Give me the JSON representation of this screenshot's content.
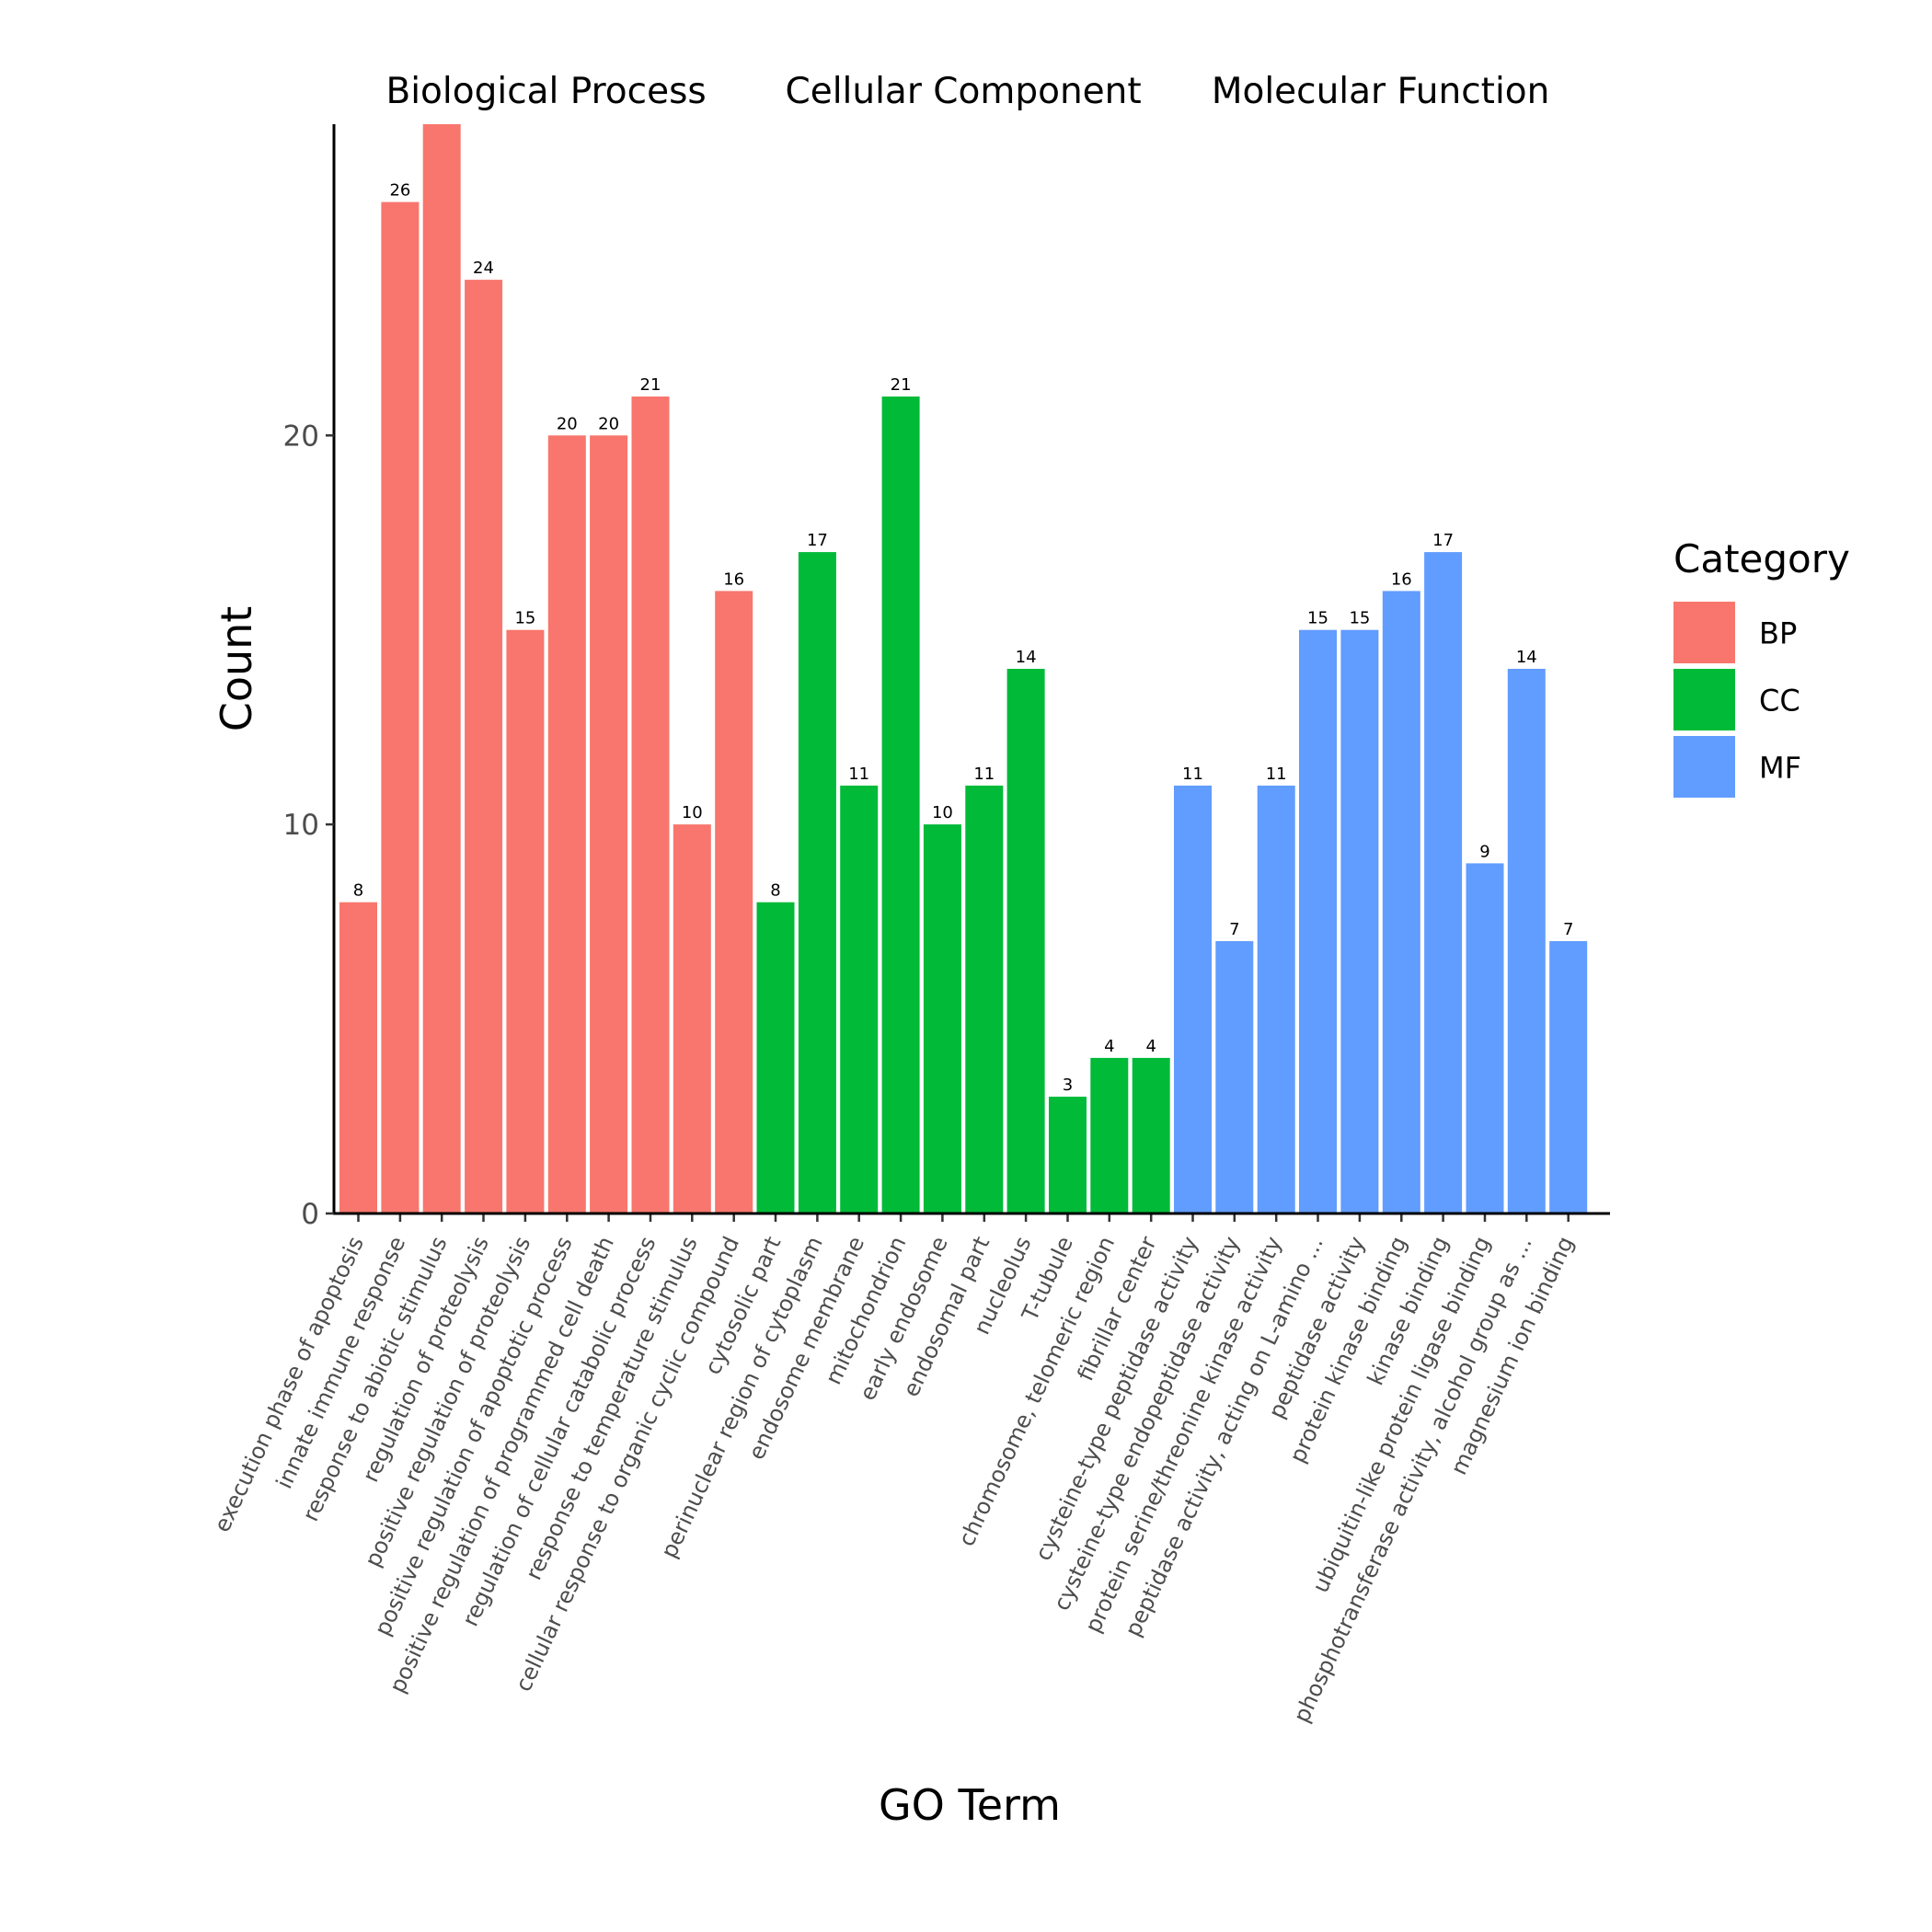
{
  "chart_data": {
    "type": "bar",
    "xlabel": "GO Term",
    "ylabel": "Count",
    "ylim": [
      0,
      28
    ],
    "yticks": [
      0,
      10,
      20
    ],
    "grid": false,
    "legend": {
      "title": "Category",
      "placement": "right",
      "entries": [
        {
          "key": "BP",
          "label": "BP",
          "color": "#F8766D"
        },
        {
          "key": "CC",
          "label": "CC",
          "color": "#00BA38"
        },
        {
          "key": "MF",
          "label": "MF",
          "color": "#619CFF"
        }
      ]
    },
    "facets": [
      {
        "title": "Biological Process",
        "category": "BP",
        "bars": [
          {
            "term": "execution phase of apoptosis",
            "value": 8,
            "label": "8"
          },
          {
            "term": "innate immune response",
            "value": 26,
            "label": "26"
          },
          {
            "term": "response to abiotic stimulus",
            "value": 28,
            "label": ""
          },
          {
            "term": "regulation of proteolysis",
            "value": 24,
            "label": "24"
          },
          {
            "term": "positive regulation of proteolysis",
            "value": 15,
            "label": "15"
          },
          {
            "term": "positive regulation of apoptotic process",
            "value": 20,
            "label": "20"
          },
          {
            "term": "positive regulation of programmed cell death",
            "value": 20,
            "label": "20"
          },
          {
            "term": "regulation of cellular catabolic process",
            "value": 21,
            "label": "21"
          },
          {
            "term": "response to temperature stimulus",
            "value": 10,
            "label": "10"
          },
          {
            "term": "cellular response to organic cyclic compound",
            "value": 16,
            "label": "16"
          }
        ]
      },
      {
        "title": "Cellular Component",
        "category": "CC",
        "bars": [
          {
            "term": "cytosolic part",
            "value": 8,
            "label": "8"
          },
          {
            "term": "perinuclear region of cytoplasm",
            "value": 17,
            "label": "17"
          },
          {
            "term": "endosome membrane",
            "value": 11,
            "label": "11"
          },
          {
            "term": "mitochondrion",
            "value": 21,
            "label": "21"
          },
          {
            "term": "early endosome",
            "value": 10,
            "label": "10"
          },
          {
            "term": "endosomal part",
            "value": 11,
            "label": "11"
          },
          {
            "term": "nucleolus",
            "value": 14,
            "label": "14"
          },
          {
            "term": "T-tubule",
            "value": 3,
            "label": "3"
          },
          {
            "term": "chromosome, telomeric region",
            "value": 4,
            "label": "4"
          },
          {
            "term": "fibrillar center",
            "value": 4,
            "label": "4"
          }
        ]
      },
      {
        "title": "Molecular Function",
        "category": "MF",
        "bars": [
          {
            "term": "cysteine-type peptidase activity",
            "value": 11,
            "label": "11"
          },
          {
            "term": "cysteine-type endopeptidase activity",
            "value": 7,
            "label": "7"
          },
          {
            "term": "protein serine/threonine kinase activity",
            "value": 11,
            "label": "11"
          },
          {
            "term": "peptidase activity, acting on L-amino ...",
            "value": 15,
            "label": "15"
          },
          {
            "term": "peptidase activity",
            "value": 15,
            "label": "15"
          },
          {
            "term": "protein kinase binding",
            "value": 16,
            "label": "16"
          },
          {
            "term": "kinase binding",
            "value": 17,
            "label": "17"
          },
          {
            "term": "ubiquitin-like protein ligase binding",
            "value": 9,
            "label": "9"
          },
          {
            "term": "phosphotransferase activity, alcohol group as ...",
            "value": 14,
            "label": "14"
          },
          {
            "term": "magnesium ion binding",
            "value": 7,
            "label": "7"
          }
        ]
      }
    ]
  }
}
